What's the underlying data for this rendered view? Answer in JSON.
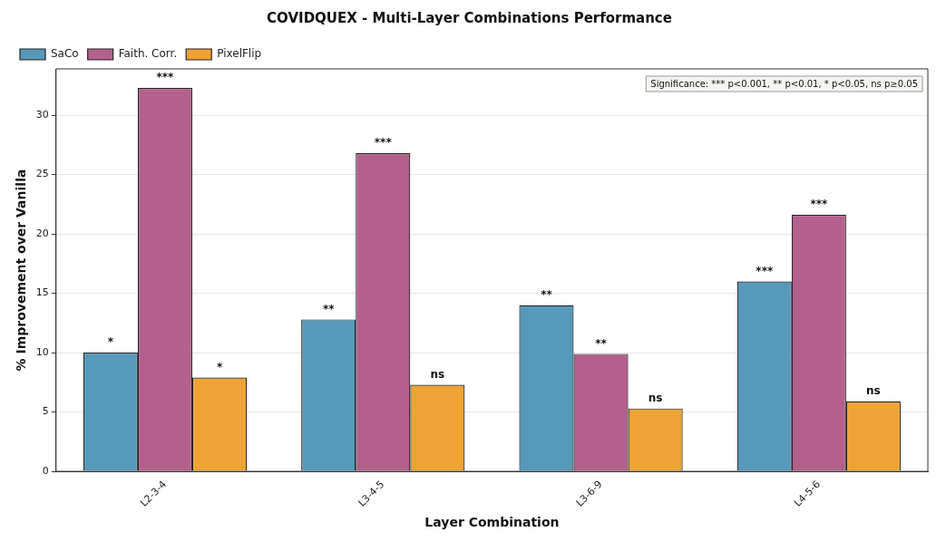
{
  "chart_data": {
    "type": "bar",
    "title": "COVIDQUEX - Multi-Layer Combinations Performance",
    "xlabel": "Layer Combination",
    "ylabel": "% Improvement over Vanilla",
    "categories": [
      "L2-3-4",
      "L3-4-5",
      "L3-6-9",
      "L4-5-6"
    ],
    "series": [
      {
        "name": "SaCo",
        "color": "#5799bb",
        "values": [
          10.0,
          12.8,
          14.0,
          16.0
        ],
        "value_labels": [
          "*",
          "**",
          "**",
          "***"
        ]
      },
      {
        "name": "Faith. Corr.",
        "color": "#b3618c",
        "values": [
          32.3,
          26.8,
          9.9,
          21.6
        ],
        "value_labels": [
          "***",
          "***",
          "**",
          "***"
        ]
      },
      {
        "name": "PixelFlip",
        "color": "#eea334",
        "values": [
          7.9,
          7.3,
          5.3,
          5.9
        ],
        "value_labels": [
          "*",
          "ns",
          "ns",
          "ns"
        ]
      }
    ],
    "ylim": [
      0,
      33.9
    ],
    "yticks": [
      0,
      5,
      10,
      15,
      20,
      25,
      30
    ],
    "grid": "y",
    "legend": "top left",
    "annotations": [
      "Significance: *** p<0.001, ** p<0.01, * p<0.05, ns p≥0.05"
    ]
  }
}
